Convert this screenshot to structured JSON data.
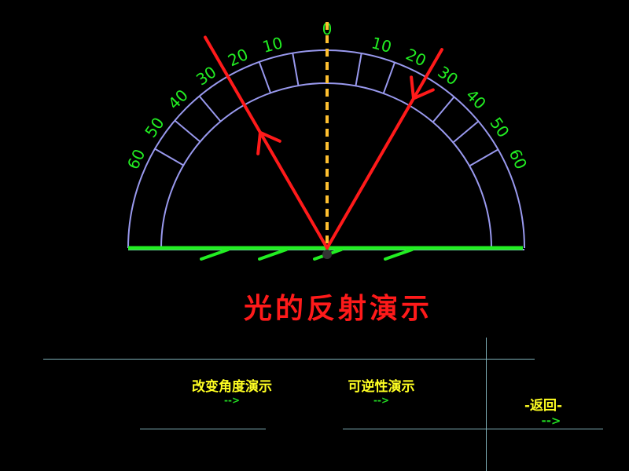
{
  "title": "光的反射演示",
  "protractor": {
    "tick_labels_left": [
      "60",
      "50",
      "40",
      "30",
      "20",
      "10"
    ],
    "center_label": "0",
    "tick_labels_right": [
      "10",
      "20",
      "30",
      "40",
      "50",
      "60"
    ],
    "incident_angle_deg": 30,
    "reflection_angle_deg": 30
  },
  "buttons": {
    "change_angle": {
      "label": "改变角度演示",
      "arrow": "-->"
    },
    "reversibility": {
      "label": "可逆性演示",
      "arrow": "-->"
    },
    "back": {
      "label": "-返回-",
      "arrow": "-->"
    }
  },
  "colors": {
    "ray": "#ff1a1a",
    "normal": "#ffc030",
    "mirror": "#22ee22",
    "protractor": "#9999ee",
    "labels": "#22ee22",
    "buttons": "#ffff22"
  }
}
